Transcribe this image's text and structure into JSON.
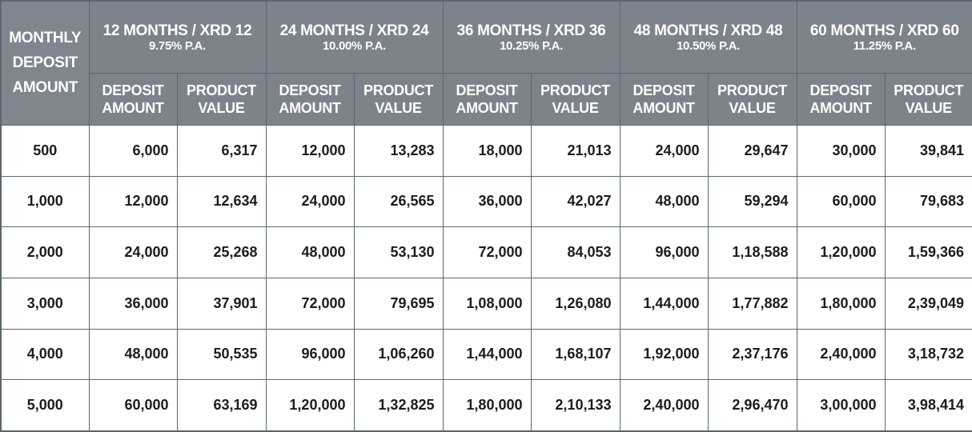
{
  "table": {
    "corner_header": [
      "MONTHLY",
      "DEPOSIT",
      "AMOUNT"
    ],
    "plans": [
      {
        "title": "12 MONTHS / XRD 12",
        "rate": "9.75% P.A."
      },
      {
        "title": "24 MONTHS / XRD 24",
        "rate": "10.00% P.A."
      },
      {
        "title": "36 MONTHS / XRD 36",
        "rate": "10.25% P.A."
      },
      {
        "title": "48 MONTHS / XRD 48",
        "rate": "10.50% P.A."
      },
      {
        "title": "60 MONTHS / XRD 60",
        "rate": "11.25% P.A."
      }
    ],
    "sub_headers": {
      "deposit": [
        "DEPOSIT",
        "AMOUNT"
      ],
      "product": [
        "PRODUCT",
        "VALUE"
      ]
    },
    "rows": [
      {
        "monthly": "500",
        "cells": [
          "6,000",
          "6,317",
          "12,000",
          "13,283",
          "18,000",
          "21,013",
          "24,000",
          "29,647",
          "30,000",
          "39,841"
        ]
      },
      {
        "monthly": "1,000",
        "cells": [
          "12,000",
          "12,634",
          "24,000",
          "26,565",
          "36,000",
          "42,027",
          "48,000",
          "59,294",
          "60,000",
          "79,683"
        ]
      },
      {
        "monthly": "2,000",
        "cells": [
          "24,000",
          "25,268",
          "48,000",
          "53,130",
          "72,000",
          "84,053",
          "96,000",
          "1,18,588",
          "1,20,000",
          "1,59,366"
        ]
      },
      {
        "monthly": "3,000",
        "cells": [
          "36,000",
          "37,901",
          "72,000",
          "79,695",
          "1,08,000",
          "1,26,080",
          "1,44,000",
          "1,77,882",
          "1,80,000",
          "2,39,049"
        ]
      },
      {
        "monthly": "4,000",
        "cells": [
          "48,000",
          "50,535",
          "96,000",
          "1,06,260",
          "1,44,000",
          "1,68,107",
          "1,92,000",
          "2,37,176",
          "2,40,000",
          "3,18,732"
        ]
      },
      {
        "monthly": "5,000",
        "cells": [
          "60,000",
          "63,169",
          "1,20,000",
          "1,32,825",
          "1,80,000",
          "2,10,133",
          "2,40,000",
          "2,96,470",
          "3,00,000",
          "3,98,414"
        ]
      }
    ]
  }
}
